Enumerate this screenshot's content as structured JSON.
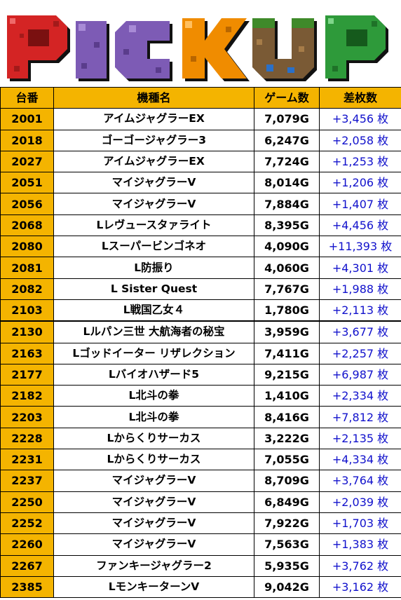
{
  "banner": {
    "letters": [
      "P",
      "I",
      "C",
      "K",
      "U",
      "P"
    ],
    "colors": {
      "red": "#d42424",
      "purple": "#7d5bb5",
      "orange": "#f08c00",
      "brown": "#7a5a35",
      "blue": "#2a70c8",
      "green": "#2e9a3a"
    }
  },
  "table": {
    "headers": [
      "台番",
      "機種名",
      "ゲーム数",
      "差枚数"
    ],
    "rows": [
      {
        "id": "2001",
        "name": "アイムジャグラーEX",
        "games": "7,079G",
        "diff": "+3,456 枚"
      },
      {
        "id": "2018",
        "name": "ゴーゴージャグラー3",
        "games": "6,247G",
        "diff": "+2,058 枚"
      },
      {
        "id": "2027",
        "name": "アイムジャグラーEX",
        "games": "7,724G",
        "diff": "+1,253 枚"
      },
      {
        "id": "2051",
        "name": "マイジャグラーV",
        "games": "8,014G",
        "diff": "+1,206 枚"
      },
      {
        "id": "2056",
        "name": "マイジャグラーV",
        "games": "7,884G",
        "diff": "+1,407 枚"
      },
      {
        "id": "2068",
        "name": "Lレヴュースタァライト",
        "games": "8,395G",
        "diff": "+4,456 枚"
      },
      {
        "id": "2080",
        "name": "Lスーパービンゴネオ",
        "games": "4,090G",
        "diff": "+11,393 枚"
      },
      {
        "id": "2081",
        "name": "L防振り",
        "games": "4,060G",
        "diff": "+4,301 枚"
      },
      {
        "id": "2082",
        "name": "L Sister Quest",
        "games": "7,767G",
        "diff": "+1,988 枚"
      },
      {
        "id": "2103",
        "name": "L戦国乙女４",
        "games": "1,780G",
        "diff": "+2,113 枚"
      },
      {
        "id": "2130",
        "name": "Lルパン三世 大航海者の秘宝",
        "games": "3,959G",
        "diff": "+3,677 枚"
      },
      {
        "id": "2163",
        "name": "Lゴッドイーター リザレクション",
        "games": "7,411G",
        "diff": "+2,257 枚"
      },
      {
        "id": "2177",
        "name": "Lバイオハザード5",
        "games": "9,215G",
        "diff": "+6,987 枚"
      },
      {
        "id": "2182",
        "name": "L北斗の拳",
        "games": "1,410G",
        "diff": "+2,334 枚"
      },
      {
        "id": "2203",
        "name": "L北斗の拳",
        "games": "8,416G",
        "diff": "+7,812 枚"
      },
      {
        "id": "2228",
        "name": "Lからくりサーカス",
        "games": "3,222G",
        "diff": "+2,135 枚"
      },
      {
        "id": "2231",
        "name": "Lからくりサーカス",
        "games": "7,055G",
        "diff": "+4,334 枚"
      },
      {
        "id": "2237",
        "name": "マイジャグラーV",
        "games": "8,709G",
        "diff": "+3,764 枚"
      },
      {
        "id": "2250",
        "name": "マイジャグラーV",
        "games": "6,849G",
        "diff": "+2,039 枚"
      },
      {
        "id": "2252",
        "name": "マイジャグラーV",
        "games": "7,922G",
        "diff": "+1,703 枚"
      },
      {
        "id": "2260",
        "name": "マイジャグラーV",
        "games": "7,563G",
        "diff": "+1,383 枚"
      },
      {
        "id": "2267",
        "name": "ファンキージャグラー2",
        "games": "5,935G",
        "diff": "+3,762 枚"
      },
      {
        "id": "2385",
        "name": "LモンキーターンV",
        "games": "9,042G",
        "diff": "+3,162 枚"
      }
    ]
  }
}
